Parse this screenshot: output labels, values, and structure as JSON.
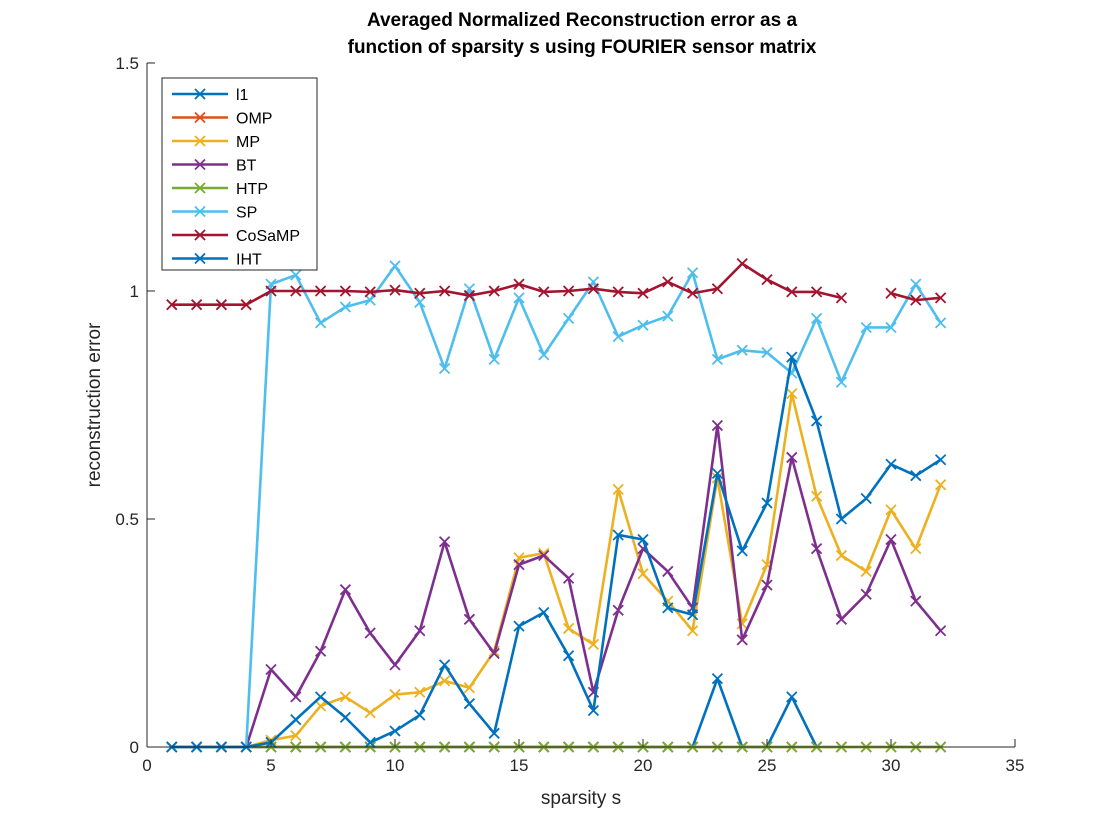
{
  "chart_data": {
    "type": "line",
    "title": [
      "Averaged Normalized Reconstruction error as a",
      "function of sparsity s using FOURIER sensor matrix"
    ],
    "xlabel": "sparsity s",
    "ylabel": "reconstruction error",
    "xlim": [
      0,
      35
    ],
    "ylim": [
      0,
      1.5
    ],
    "xticks": [
      0,
      5,
      10,
      15,
      20,
      25,
      30,
      35
    ],
    "yticks": [
      0,
      0.5,
      1,
      1.5
    ],
    "ytick_labels": [
      "0",
      "0.5",
      "1",
      "1.5"
    ],
    "grid": false,
    "legend": "top-left",
    "marker": "x",
    "x": [
      1,
      2,
      3,
      4,
      5,
      6,
      7,
      8,
      9,
      10,
      11,
      12,
      13,
      14,
      15,
      16,
      17,
      18,
      19,
      20,
      21,
      22,
      23,
      24,
      25,
      26,
      27,
      28,
      29,
      30,
      31,
      32
    ],
    "series": [
      {
        "name": "l1",
        "color": "#0072BD",
        "values": [
          0,
          0,
          0,
          0,
          0,
          0,
          0,
          0,
          0,
          0,
          0,
          0,
          0,
          0,
          0,
          0,
          0,
          0,
          0,
          0,
          0,
          0,
          0.15,
          0,
          0,
          0.11,
          0,
          null,
          null,
          null,
          null,
          null
        ]
      },
      {
        "name": "OMP",
        "color": "#D95319",
        "values": [
          0,
          0,
          0,
          0,
          0,
          0,
          0,
          0,
          0,
          0,
          0,
          0,
          0,
          0,
          0,
          0,
          0,
          0,
          0,
          0,
          0,
          0,
          0,
          0,
          0,
          0,
          0,
          0,
          0,
          0,
          0,
          0
        ]
      },
      {
        "name": "MP",
        "color": "#EDB120",
        "values": [
          0,
          0,
          0,
          0,
          0.015,
          0.025,
          0.09,
          0.11,
          0.075,
          0.115,
          0.12,
          0.145,
          0.13,
          0.21,
          0.415,
          0.425,
          0.26,
          0.225,
          0.565,
          0.38,
          0.32,
          0.255,
          0.59,
          0.27,
          0.4,
          0.775,
          0.55,
          0.42,
          0.385,
          0.52,
          0.435,
          0.575
        ]
      },
      {
        "name": "BT",
        "color": "#7E2F8E",
        "values": [
          0,
          0,
          0,
          0,
          0.17,
          0.11,
          0.21,
          0.345,
          0.25,
          0.18,
          0.255,
          0.45,
          0.28,
          0.205,
          0.4,
          0.42,
          0.37,
          0.12,
          0.3,
          0.435,
          0.385,
          0.305,
          0.705,
          0.235,
          0.355,
          0.635,
          0.435,
          0.28,
          0.335,
          0.455,
          0.32,
          0.255
        ]
      },
      {
        "name": "HTP",
        "color": "#77AC30",
        "values": [
          0,
          0,
          0,
          0,
          0,
          0,
          0,
          0,
          0,
          0,
          0,
          0,
          0,
          0,
          0,
          0,
          0,
          0,
          0,
          0,
          0,
          0,
          0,
          0,
          0,
          0,
          0,
          0,
          0,
          0,
          0,
          0
        ]
      },
      {
        "name": "SP",
        "color": "#4DBEEE",
        "values": [
          0,
          0,
          0,
          0,
          1.015,
          1.035,
          0.93,
          0.965,
          0.98,
          1.055,
          0.975,
          0.83,
          1.005,
          0.85,
          0.985,
          0.86,
          0.94,
          1.02,
          0.9,
          0.925,
          0.945,
          1.04,
          0.85,
          0.87,
          0.865,
          0.82,
          0.94,
          0.8,
          0.92,
          0.92,
          1.015,
          0.93
        ]
      },
      {
        "name": "CoSaMP",
        "color": "#A2142F",
        "values": [
          0.97,
          0.97,
          0.97,
          0.97,
          1.0,
          1.0,
          1.0,
          1.0,
          0.998,
          1.002,
          0.995,
          1.0,
          0.99,
          1.0,
          1.015,
          0.998,
          1.0,
          1.005,
          0.998,
          0.995,
          1.02,
          0.995,
          1.005,
          1.06,
          1.025,
          0.998,
          0.998,
          0.985,
          null,
          0.995,
          0.98,
          0.985
        ]
      },
      {
        "name": "IHT",
        "color": "#0072BD",
        "values": [
          0,
          0,
          0,
          0,
          0.01,
          0.06,
          0.11,
          0.065,
          0.01,
          0.035,
          0.07,
          0.18,
          0.095,
          0.03,
          0.265,
          0.295,
          0.2,
          0.08,
          0.465,
          0.455,
          0.305,
          0.29,
          0.6,
          0.43,
          0.535,
          0.855,
          0.715,
          0.5,
          0.545,
          0.62,
          0.595,
          0.63
        ]
      }
    ]
  }
}
